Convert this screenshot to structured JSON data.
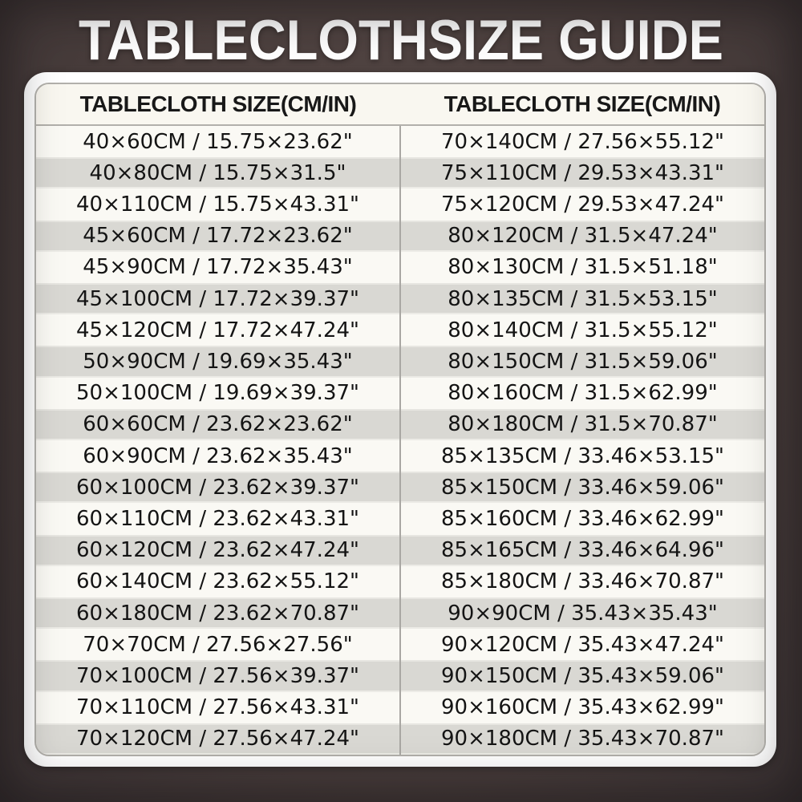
{
  "title": "TABLECLOTHSIZE GUIDE",
  "table": {
    "left_header": "TABLECLOTH SIZE(CM/IN)",
    "right_header": "TABLECLOTH SIZE(CM/IN)"
  },
  "colors": {
    "background_brown": "#4b3f3d",
    "panel_white": "#ffffff",
    "header_bg": "#f9f7f0",
    "row_light": "#faf9f4",
    "row_dark": "#d9d8d3",
    "border_gray": "#b2b0ab",
    "text_black": "#141414",
    "title_white": "#ffffff"
  },
  "chart_data": {
    "type": "table",
    "title": "TABLECLOTHSIZE GUIDE",
    "columns": [
      "TABLECLOTH SIZE(CM/IN)",
      "TABLECLOTH SIZE(CM/IN)"
    ],
    "rows": [
      [
        "40×60CM / 15.75×23.62\"",
        "70×140CM / 27.56×55.12\""
      ],
      [
        "40×80CM / 15.75×31.5\"",
        "75×110CM / 29.53×43.31\""
      ],
      [
        "40×110CM / 15.75×43.31\"",
        "75×120CM / 29.53×47.24\""
      ],
      [
        "45×60CM / 17.72×23.62\"",
        "80×120CM / 31.5×47.24\""
      ],
      [
        "45×90CM / 17.72×35.43\"",
        "80×130CM / 31.5×51.18\""
      ],
      [
        "45×100CM / 17.72×39.37\"",
        "80×135CM / 31.5×53.15\""
      ],
      [
        "45×120CM / 17.72×47.24\"",
        "80×140CM / 31.5×55.12\""
      ],
      [
        "50×90CM / 19.69×35.43\"",
        "80×150CM / 31.5×59.06\""
      ],
      [
        "50×100CM / 19.69×39.37\"",
        "80×160CM / 31.5×62.99\""
      ],
      [
        "60×60CM / 23.62×23.62\"",
        "80×180CM / 31.5×70.87\""
      ],
      [
        "60×90CM / 23.62×35.43\"",
        "85×135CM / 33.46×53.15\""
      ],
      [
        "60×100CM / 23.62×39.37\"",
        "85×150CM / 33.46×59.06\""
      ],
      [
        "60×110CM / 23.62×43.31\"",
        "85×160CM / 33.46×62.99\""
      ],
      [
        "60×120CM / 23.62×47.24\"",
        "85×165CM / 33.46×64.96\""
      ],
      [
        "60×140CM / 23.62×55.12\"",
        "85×180CM / 33.46×70.87\""
      ],
      [
        "60×180CM / 23.62×70.87\"",
        "90×90CM / 35.43×35.43\""
      ],
      [
        "70×70CM / 27.56×27.56\"",
        "90×120CM / 35.43×47.24\""
      ],
      [
        "70×100CM / 27.56×39.37\"",
        "90×150CM / 35.43×59.06\""
      ],
      [
        "70×110CM / 27.56×43.31\"",
        "90×160CM / 35.43×62.99\""
      ],
      [
        "70×120CM / 27.56×47.24\"",
        "90×180CM / 35.43×70.87\""
      ]
    ]
  }
}
